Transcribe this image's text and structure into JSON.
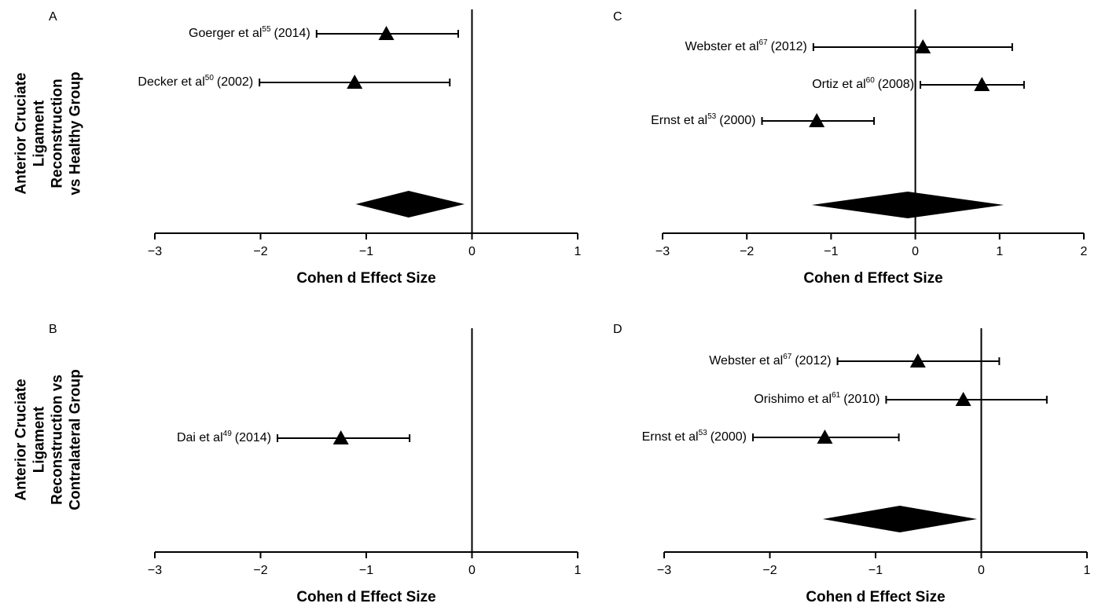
{
  "row_labels": [
    [
      "Anterior Cruciate",
      "Ligament",
      "Reconstruction",
      "vs Healthy Group"
    ],
    [
      "Anterior Cruciate",
      "Ligament",
      "Reconstruction vs",
      "Contralateral Group"
    ]
  ],
  "chart_data": [
    {
      "type": "forest",
      "panel": "A",
      "xlabel": "Cohen d Effect Size",
      "color": "#000000",
      "xlim": [
        -3,
        1
      ],
      "xticks": [
        {
          "value": -3,
          "label": "−3"
        },
        {
          "value": -2,
          "label": "−2"
        },
        {
          "value": -1,
          "label": "−1"
        },
        0,
        1
      ],
      "studies": [
        {
          "label": "Goerger et al",
          "ref": "55",
          "year": "(2014)",
          "value": -0.81,
          "ci": [
            -1.47,
            -0.13
          ]
        },
        {
          "label": "Decker et al",
          "ref": "50",
          "year": "(2002)",
          "value": -1.11,
          "ci": [
            -2.01,
            -0.21
          ]
        }
      ],
      "pooled": {
        "value": -0.6,
        "ci": [
          -1.1,
          -0.07
        ]
      }
    },
    {
      "type": "forest",
      "panel": "C",
      "xlabel": "Cohen d Effect Size",
      "color": "#000000",
      "xlim": [
        -3,
        2
      ],
      "xticks": [
        {
          "value": -3,
          "label": "−3"
        },
        {
          "value": -2,
          "label": "−2"
        },
        {
          "value": -1,
          "label": "−1"
        },
        0,
        1,
        2
      ],
      "studies": [
        {
          "label": "Webster et al",
          "ref": "67",
          "year": "(2012)",
          "value": 0.09,
          "ci": [
            -1.21,
            1.15
          ]
        },
        {
          "label": "Ortiz et al",
          "ref": "60",
          "year": "(2008)",
          "value": 0.79,
          "ci": [
            0.06,
            1.29
          ]
        },
        {
          "label": "Ernst et al",
          "ref": "53",
          "year": "(2000)",
          "value": -1.17,
          "ci": [
            -1.82,
            -0.49
          ]
        }
      ],
      "pooled": {
        "value": -0.09,
        "ci": [
          -1.23,
          1.05
        ]
      }
    },
    {
      "type": "forest",
      "panel": "B",
      "xlabel": "Cohen d Effect Size",
      "color": "#000000",
      "xlim": [
        -3,
        1
      ],
      "xticks": [
        {
          "value": -3,
          "label": "−3"
        },
        {
          "value": -2,
          "label": "−2"
        },
        {
          "value": -1,
          "label": "−1"
        },
        0,
        1
      ],
      "studies": [
        {
          "label": "Dai et al",
          "ref": "49",
          "year": "(2014)",
          "value": -1.24,
          "ci": [
            -1.84,
            -0.59
          ]
        }
      ]
    },
    {
      "type": "forest",
      "panel": "D",
      "xlabel": "Cohen d Effect Size",
      "color": "#000000",
      "xlim": [
        -3,
        1
      ],
      "xticks": [
        {
          "value": -3,
          "label": "−3"
        },
        {
          "value": -2,
          "label": "−2"
        },
        {
          "value": -1,
          "label": "−1"
        },
        0,
        1
      ],
      "studies": [
        {
          "label": "Webster et al",
          "ref": "67",
          "year": "(2012)",
          "value": -0.6,
          "ci": [
            -1.36,
            0.17
          ]
        },
        {
          "label": "Orishimo et al",
          "ref": "61",
          "year": "(2010)",
          "value": -0.17,
          "ci": [
            -0.9,
            0.62
          ]
        },
        {
          "label": "Ernst et al",
          "ref": "53",
          "year": "(2000)",
          "value": -1.48,
          "ci": [
            -2.16,
            -0.78
          ]
        }
      ],
      "pooled": {
        "value": -0.77,
        "ci": [
          -1.5,
          -0.04
        ]
      }
    }
  ]
}
